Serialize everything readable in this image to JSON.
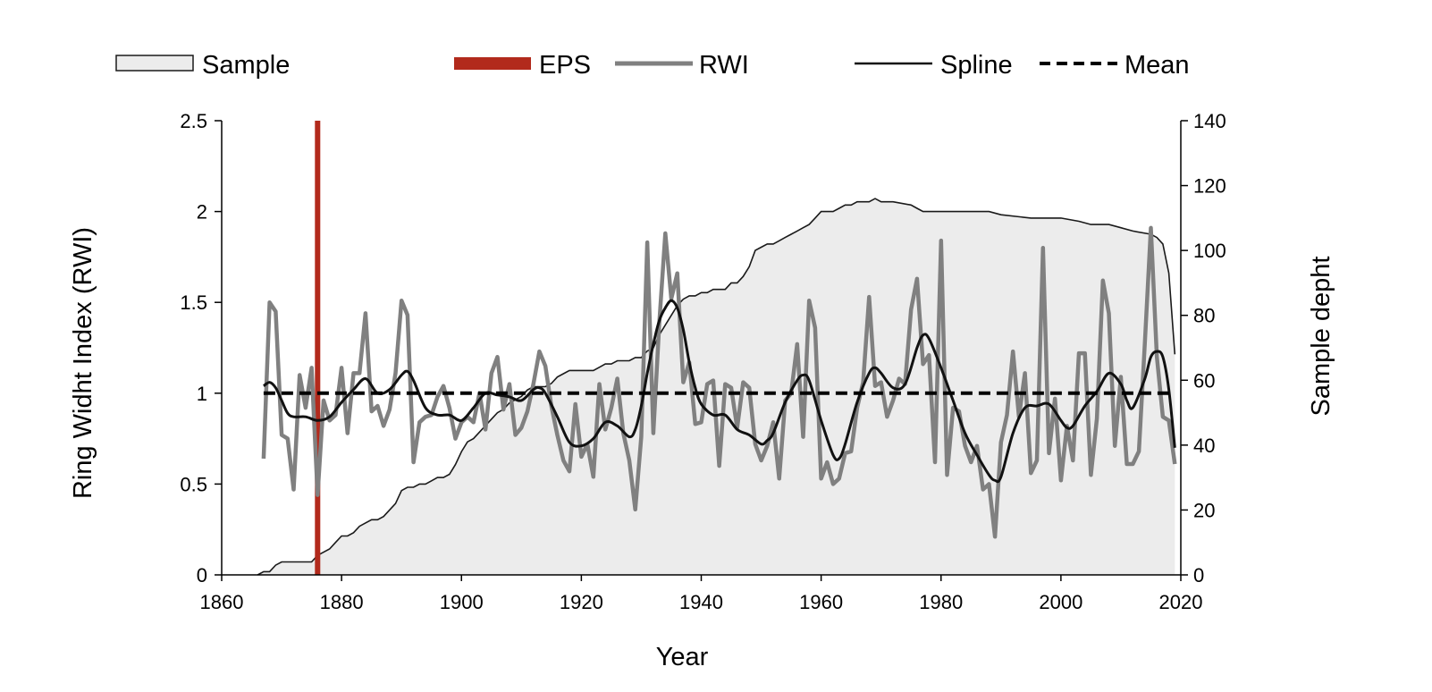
{
  "chart_data": {
    "type": "line",
    "title": "",
    "xlabel": "Year",
    "ylabel": "Ring Widht Index (RWI)",
    "ylabel_right": "Sample depht",
    "xlim": [
      1860,
      2020
    ],
    "ylim": [
      0,
      2.5
    ],
    "ylim_right": [
      0,
      140
    ],
    "x_ticks": [
      "1860",
      "1880",
      "1900",
      "1920",
      "1940",
      "1960",
      "1980",
      "2000",
      "2020"
    ],
    "y_ticks": [
      "0",
      "0.5",
      "1",
      "1.5",
      "2",
      "2.5"
    ],
    "y_ticks_right": [
      "0",
      "20",
      "40",
      "60",
      "80",
      "100",
      "120",
      "140"
    ],
    "grid": false,
    "legend_position": "top",
    "legend": {
      "sample": "Sample",
      "eps": "EPS",
      "rwi": "RWI",
      "spline": "Spline",
      "mean": "Mean"
    },
    "colors": {
      "sample_fill": "#ececec",
      "sample_stroke": "#1a1a1a",
      "eps": "#b22a1c",
      "rwi": "#808080",
      "spline": "#111111",
      "mean": "#000000"
    },
    "eps_year": 1876,
    "mean_value": 1.0,
    "sample": {
      "x": [
        1866,
        1867,
        1868,
        1869,
        1870,
        1871,
        1872,
        1873,
        1874,
        1875,
        1876,
        1877,
        1878,
        1879,
        1880,
        1881,
        1882,
        1883,
        1884,
        1885,
        1886,
        1887,
        1888,
        1889,
        1890,
        1891,
        1892,
        1893,
        1894,
        1895,
        1896,
        1897,
        1898,
        1899,
        1900,
        1901,
        1902,
        1903,
        1904,
        1905,
        1906,
        1907,
        1908,
        1909,
        1910,
        1911,
        1912,
        1913,
        1914,
        1915,
        1916,
        1917,
        1918,
        1919,
        1920,
        1921,
        1922,
        1923,
        1924,
        1925,
        1926,
        1927,
        1928,
        1929,
        1930,
        1931,
        1932,
        1933,
        1934,
        1935,
        1936,
        1937,
        1938,
        1939,
        1940,
        1941,
        1942,
        1943,
        1944,
        1945,
        1946,
        1947,
        1948,
        1949,
        1950,
        1951,
        1952,
        1953,
        1954,
        1955,
        1956,
        1957,
        1958,
        1959,
        1960,
        1961,
        1962,
        1963,
        1964,
        1965,
        1966,
        1967,
        1968,
        1969,
        1970,
        1972,
        1975,
        1976,
        1977,
        1980,
        1985,
        1988,
        1990,
        1995,
        2000,
        2003,
        2005,
        2008,
        2010,
        2012,
        2015,
        2016,
        2017,
        2018,
        2019
      ],
      "values": [
        0,
        1,
        1,
        3,
        4,
        4,
        4,
        4,
        4,
        4,
        6,
        7,
        8,
        10,
        12,
        12,
        13,
        15,
        16,
        17,
        17,
        18,
        20,
        22,
        26,
        27,
        27,
        28,
        28,
        29,
        30,
        30,
        31,
        34,
        38,
        41,
        42,
        44,
        46,
        48,
        50,
        51,
        53,
        54,
        55,
        57,
        58,
        58,
        58,
        59,
        61,
        62,
        63,
        63,
        63,
        63,
        63,
        64,
        65,
        65,
        66,
        66,
        66,
        67,
        67,
        69,
        70,
        74,
        77,
        80,
        83,
        85,
        86,
        86,
        87,
        87,
        88,
        88,
        88,
        90,
        90,
        92,
        95,
        100,
        101,
        102,
        102,
        103,
        104,
        105,
        106,
        107,
        108,
        110,
        112,
        112,
        112,
        113,
        114,
        114,
        115,
        115,
        115,
        116,
        115,
        115,
        114,
        113,
        112,
        112,
        112,
        112,
        111,
        110,
        110,
        109,
        108,
        108,
        107,
        106,
        105,
        104,
        102,
        93,
        68
      ]
    },
    "rwi": {
      "x": [
        1867,
        1868,
        1869,
        1870,
        1871,
        1872,
        1873,
        1874,
        1875,
        1876,
        1877,
        1878,
        1879,
        1880,
        1881,
        1882,
        1883,
        1884,
        1885,
        1886,
        1887,
        1888,
        1889,
        1890,
        1891,
        1892,
        1893,
        1894,
        1895,
        1896,
        1897,
        1898,
        1899,
        1900,
        1901,
        1902,
        1903,
        1904,
        1905,
        1906,
        1907,
        1908,
        1909,
        1910,
        1911,
        1912,
        1913,
        1914,
        1915,
        1916,
        1917,
        1918,
        1919,
        1920,
        1921,
        1922,
        1923,
        1924,
        1925,
        1926,
        1927,
        1928,
        1929,
        1930,
        1931,
        1932,
        1933,
        1934,
        1935,
        1936,
        1937,
        1938,
        1939,
        1940,
        1941,
        1942,
        1943,
        1944,
        1945,
        1946,
        1947,
        1948,
        1949,
        1950,
        1951,
        1952,
        1953,
        1954,
        1955,
        1956,
        1957,
        1958,
        1959,
        1960,
        1961,
        1962,
        1963,
        1964,
        1965,
        1966,
        1967,
        1968,
        1969,
        1970,
        1971,
        1972,
        1973,
        1974,
        1975,
        1976,
        1977,
        1978,
        1979,
        1980,
        1981,
        1982,
        1983,
        1984,
        1985,
        1986,
        1987,
        1988,
        1989,
        1990,
        1991,
        1992,
        1993,
        1994,
        1995,
        1996,
        1997,
        1998,
        1999,
        2000,
        2001,
        2002,
        2003,
        2004,
        2005,
        2006,
        2007,
        2008,
        2009,
        2010,
        2011,
        2012,
        2013,
        2014,
        2015,
        2016,
        2017,
        2018,
        2019
      ],
      "values": [
        0.64,
        1.5,
        1.45,
        0.77,
        0.75,
        0.47,
        1.1,
        0.92,
        1.14,
        0.44,
        0.96,
        0.85,
        0.88,
        1.14,
        0.78,
        1.11,
        1.11,
        1.44,
        0.9,
        0.93,
        0.82,
        0.91,
        1.11,
        1.51,
        1.43,
        0.62,
        0.84,
        0.87,
        0.88,
        0.98,
        1.04,
        0.92,
        0.75,
        0.84,
        0.87,
        0.84,
        1.0,
        0.8,
        1.11,
        1.2,
        0.91,
        1.05,
        0.77,
        0.81,
        0.9,
        1.05,
        1.23,
        1.15,
        0.93,
        0.77,
        0.63,
        0.57,
        0.94,
        0.65,
        0.72,
        0.54,
        1.05,
        0.8,
        0.92,
        1.08,
        0.78,
        0.63,
        0.36,
        0.76,
        1.83,
        0.78,
        1.39,
        1.88,
        1.52,
        1.66,
        1.06,
        1.17,
        0.83,
        0.84,
        1.05,
        1.07,
        0.6,
        1.05,
        1.03,
        0.81,
        1.06,
        1.03,
        0.72,
        0.63,
        0.71,
        0.84,
        0.53,
        0.96,
        1.0,
        1.27,
        0.76,
        1.51,
        1.36,
        0.53,
        0.62,
        0.5,
        0.53,
        0.67,
        0.68,
        0.92,
        1.06,
        1.53,
        1.04,
        1.06,
        0.87,
        0.96,
        1.08,
        1.05,
        1.46,
        1.63,
        1.16,
        1.21,
        0.62,
        1.84,
        0.55,
        0.92,
        0.9,
        0.71,
        0.62,
        0.71,
        0.47,
        0.5,
        0.21,
        0.73,
        0.88,
        1.23,
        0.87,
        1.11,
        0.56,
        0.63,
        1.8,
        0.67,
        0.97,
        0.52,
        0.82,
        0.63,
        1.22,
        1.22,
        0.55,
        0.86,
        1.62,
        1.44,
        0.71,
        1.09,
        0.61,
        0.61,
        0.68,
        1.28,
        1.91,
        1.2,
        0.87,
        0.85,
        0.61
      ]
    },
    "spline": {
      "x": [
        1867,
        1868,
        1869,
        1870,
        1871,
        1872,
        1874,
        1876,
        1878,
        1880,
        1882,
        1884,
        1886,
        1888,
        1890,
        1891,
        1892,
        1894,
        1896,
        1898,
        1900,
        1902,
        1904,
        1906,
        1908,
        1910,
        1912,
        1913,
        1914,
        1916,
        1918,
        1920,
        1922,
        1924,
        1926,
        1928,
        1929,
        1930,
        1931,
        1932,
        1933,
        1934,
        1935,
        1936,
        1937,
        1938,
        1939,
        1940,
        1942,
        1944,
        1946,
        1948,
        1950,
        1951,
        1952,
        1954,
        1956,
        1957,
        1958,
        1960,
        1962,
        1963,
        1964,
        1966,
        1968,
        1969,
        1970,
        1972,
        1974,
        1976,
        1977,
        1978,
        1980,
        1982,
        1984,
        1986,
        1988,
        1989,
        1990,
        1992,
        1994,
        1996,
        1998,
        2000,
        2001,
        2002,
        2004,
        2006,
        2008,
        2010,
        2011,
        2012,
        2014,
        2015,
        2016,
        2017,
        2018,
        2019
      ],
      "values": [
        1.04,
        1.06,
        1.03,
        0.96,
        0.89,
        0.87,
        0.87,
        0.85,
        0.87,
        0.95,
        1.02,
        1.08,
        1.0,
        1.02,
        1.1,
        1.12,
        1.07,
        0.92,
        0.88,
        0.88,
        0.85,
        0.92,
        1.0,
        0.99,
        0.98,
        0.96,
        1.02,
        1.03,
        1.0,
        0.87,
        0.73,
        0.71,
        0.75,
        0.84,
        0.82,
        0.76,
        0.8,
        0.93,
        1.11,
        1.27,
        1.4,
        1.47,
        1.51,
        1.47,
        1.35,
        1.17,
        1.03,
        0.94,
        0.88,
        0.88,
        0.8,
        0.77,
        0.72,
        0.74,
        0.78,
        0.95,
        1.07,
        1.1,
        1.07,
        0.85,
        0.66,
        0.64,
        0.72,
        0.95,
        1.11,
        1.14,
        1.11,
        1.03,
        1.05,
        1.25,
        1.32,
        1.3,
        1.14,
        0.96,
        0.78,
        0.66,
        0.55,
        0.52,
        0.54,
        0.78,
        0.92,
        0.93,
        0.94,
        0.85,
        0.81,
        0.82,
        0.93,
        1.01,
        1.11,
        1.05,
        0.96,
        0.92,
        1.08,
        1.2,
        1.23,
        1.2,
        1.02,
        0.7
      ]
    }
  }
}
